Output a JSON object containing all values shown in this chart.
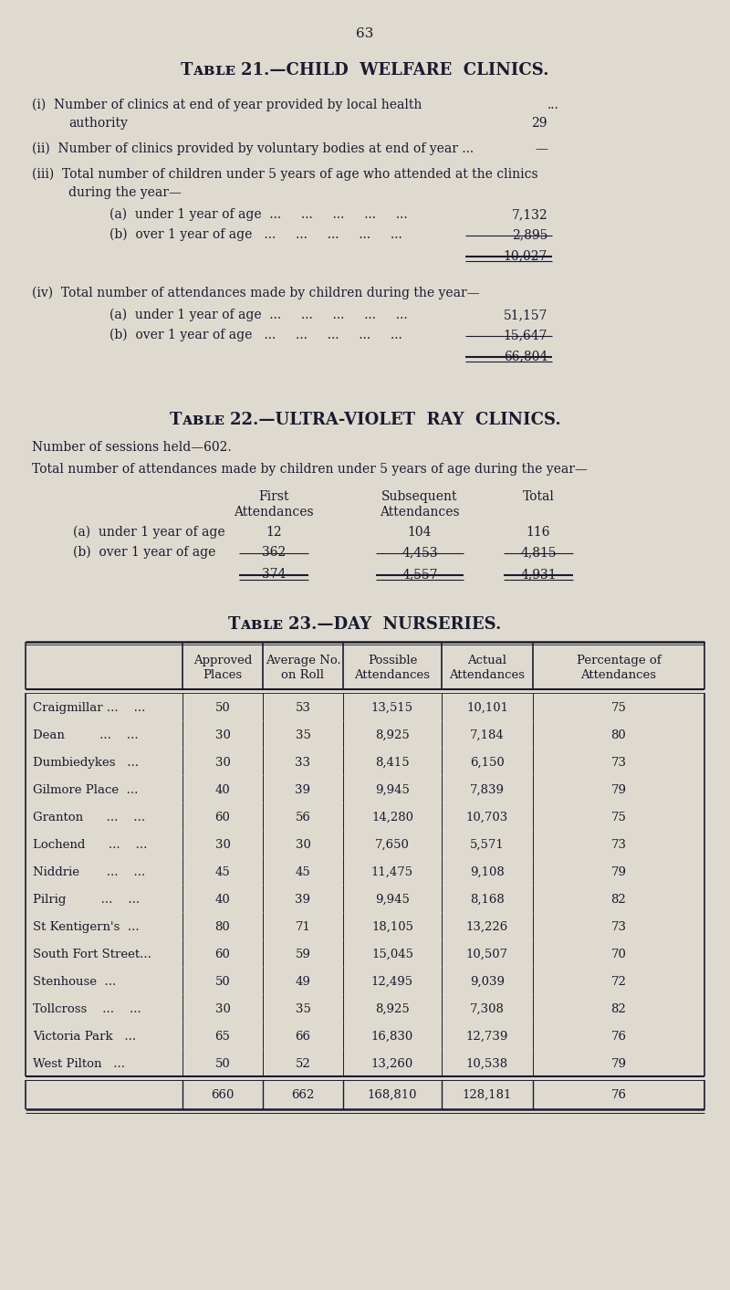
{
  "bg_color": "#dedad0",
  "text_color": "#1a1a2e",
  "page_number": "63",
  "table21_title": "Tᴀʙʟᴇ 21.—CHILD  WELFARE  CLINICS.",
  "table22_title": "Tᴀʙʟᴇ 22.—ULTRA-VIOLET  RAY  CLINICS.",
  "table23_title": "Tᴀʙʟᴇ 23.—DAY  NURSERIES.",
  "table22_sessions": "Number of sessions held—602.",
  "table22_intro": "Total number of attendances made by children under 5 years of age during the year—",
  "table23_col_headers": [
    "Approved\nPlaces",
    "Average No.\non Roll",
    "Possible\nAttendances",
    "Actual\nAttendances",
    "Percentage of\nAttendances"
  ],
  "table23_rows": [
    {
      "name": "Craigmillar ...    ...",
      "approved": "50",
      "avg_roll": "53",
      "possible": "13,515",
      "actual": "10,101",
      "pct": "75"
    },
    {
      "name": "Dean         ...    ...",
      "approved": "30",
      "avg_roll": "35",
      "possible": "8,925",
      "actual": "7,184",
      "pct": "80"
    },
    {
      "name": "Dumbiedykes   ...",
      "approved": "30",
      "avg_roll": "33",
      "possible": "8,415",
      "actual": "6,150",
      "pct": "73"
    },
    {
      "name": "Gilmore Place  ...",
      "approved": "40",
      "avg_roll": "39",
      "possible": "9,945",
      "actual": "7,839",
      "pct": "79"
    },
    {
      "name": "Granton      ...    ...",
      "approved": "60",
      "avg_roll": "56",
      "possible": "14,280",
      "actual": "10,703",
      "pct": "75"
    },
    {
      "name": "Lochend      ...    ...",
      "approved": "30",
      "avg_roll": "30",
      "possible": "7,650",
      "actual": "5,571",
      "pct": "73"
    },
    {
      "name": "Niddrie       ...    ...",
      "approved": "45",
      "avg_roll": "45",
      "possible": "11,475",
      "actual": "9,108",
      "pct": "79"
    },
    {
      "name": "Pilrig         ...    ...",
      "approved": "40",
      "avg_roll": "39",
      "possible": "9,945",
      "actual": "8,168",
      "pct": "82"
    },
    {
      "name": "St Kentigern's  ...",
      "approved": "80",
      "avg_roll": "71",
      "possible": "18,105",
      "actual": "13,226",
      "pct": "73"
    },
    {
      "name": "South Fort Street...",
      "approved": "60",
      "avg_roll": "59",
      "possible": "15,045",
      "actual": "10,507",
      "pct": "70"
    },
    {
      "name": "Stenhouse  ...",
      "approved": "50",
      "avg_roll": "49",
      "possible": "12,495",
      "actual": "9,039",
      "pct": "72"
    },
    {
      "name": "Tollcross    ...    ...",
      "approved": "30",
      "avg_roll": "35",
      "possible": "8,925",
      "actual": "7,308",
      "pct": "82"
    },
    {
      "name": "Victoria Park   ...",
      "approved": "65",
      "avg_roll": "66",
      "possible": "16,830",
      "actual": "12,739",
      "pct": "76"
    },
    {
      "name": "West Pilton   ...",
      "approved": "50",
      "avg_roll": "52",
      "possible": "13,260",
      "actual": "10,538",
      "pct": "79"
    }
  ],
  "table23_totals": {
    "approved": "660",
    "avg_roll": "662",
    "possible": "168,810",
    "actual": "128,181",
    "pct": "76"
  }
}
